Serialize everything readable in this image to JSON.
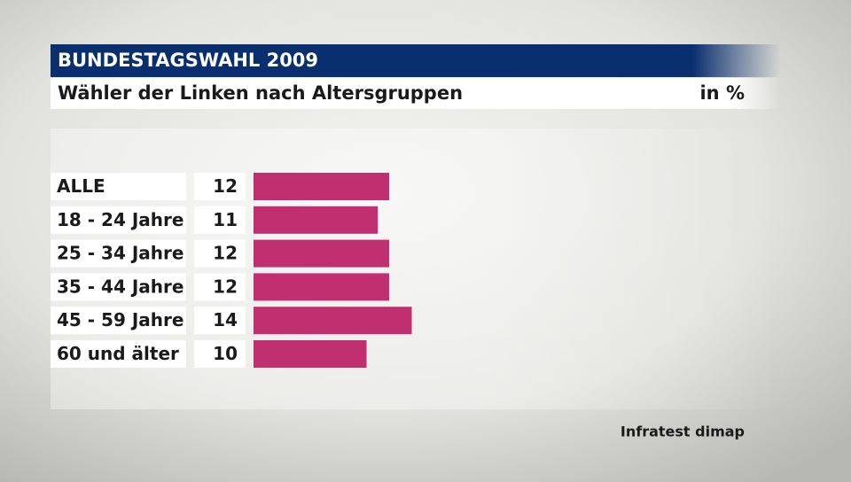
{
  "chart_data": {
    "type": "bar",
    "orientation": "horizontal",
    "title": "BUNDESTAGSWAHL 2009",
    "subtitle": "Wähler der Linken nach Altersgruppen",
    "unit_label": "in %",
    "source": "Infratest dimap",
    "categories": [
      "ALLE",
      "18 - 24 Jahre",
      "25 - 34 Jahre",
      "35 - 44 Jahre",
      "45 - 59 Jahre",
      "60 und älter"
    ],
    "values": [
      12,
      11,
      12,
      12,
      14,
      10
    ],
    "color": "#c03070"
  }
}
